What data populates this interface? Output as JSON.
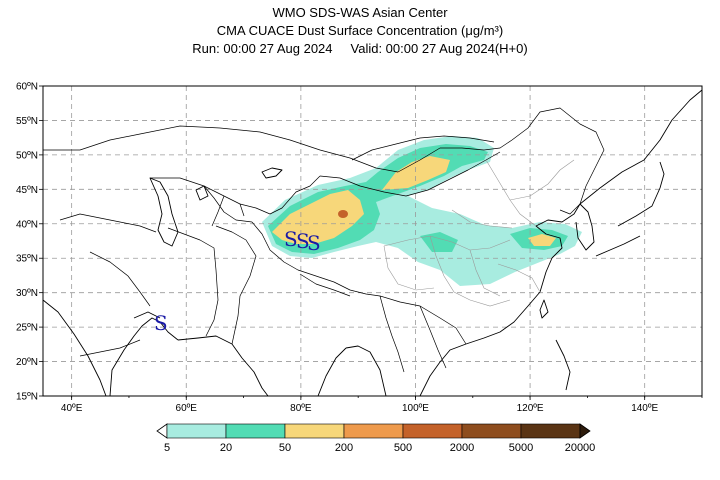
{
  "title": {
    "line1": "WMO SDS-WAS Asian Center",
    "line2_prefix": "CMA CUACE Dust Surface Concentration",
    "line2_unit": "(μg/m³)",
    "run": "Run: 00:00 27 Aug 2024",
    "valid": "Valid: 00:00 27 Aug 2024(H+0)"
  },
  "map": {
    "lon_range": [
      35,
      150
    ],
    "lat_range": [
      15,
      60
    ],
    "lon_ticks": [
      "40ºE",
      "60ºE",
      "80ºE",
      "100ºE",
      "120ºE",
      "140ºE"
    ],
    "lat_ticks": [
      "15ºN",
      "20ºN",
      "25ºN",
      "30ºN",
      "35ºN",
      "40ºN",
      "45ºN",
      "50ºN",
      "55ºN",
      "60ºN"
    ],
    "grid": "dashed",
    "storm_symbol": "S"
  },
  "colorbar": {
    "labels": [
      "5",
      "20",
      "50",
      "200",
      "500",
      "2000",
      "5000",
      "20000"
    ],
    "colors": [
      "#a8ece0",
      "#52dcb4",
      "#f7d77a",
      "#ee9a4c",
      "#c4622a",
      "#8e4d1e",
      "#5a3414",
      "#2e1c0c"
    ]
  }
}
